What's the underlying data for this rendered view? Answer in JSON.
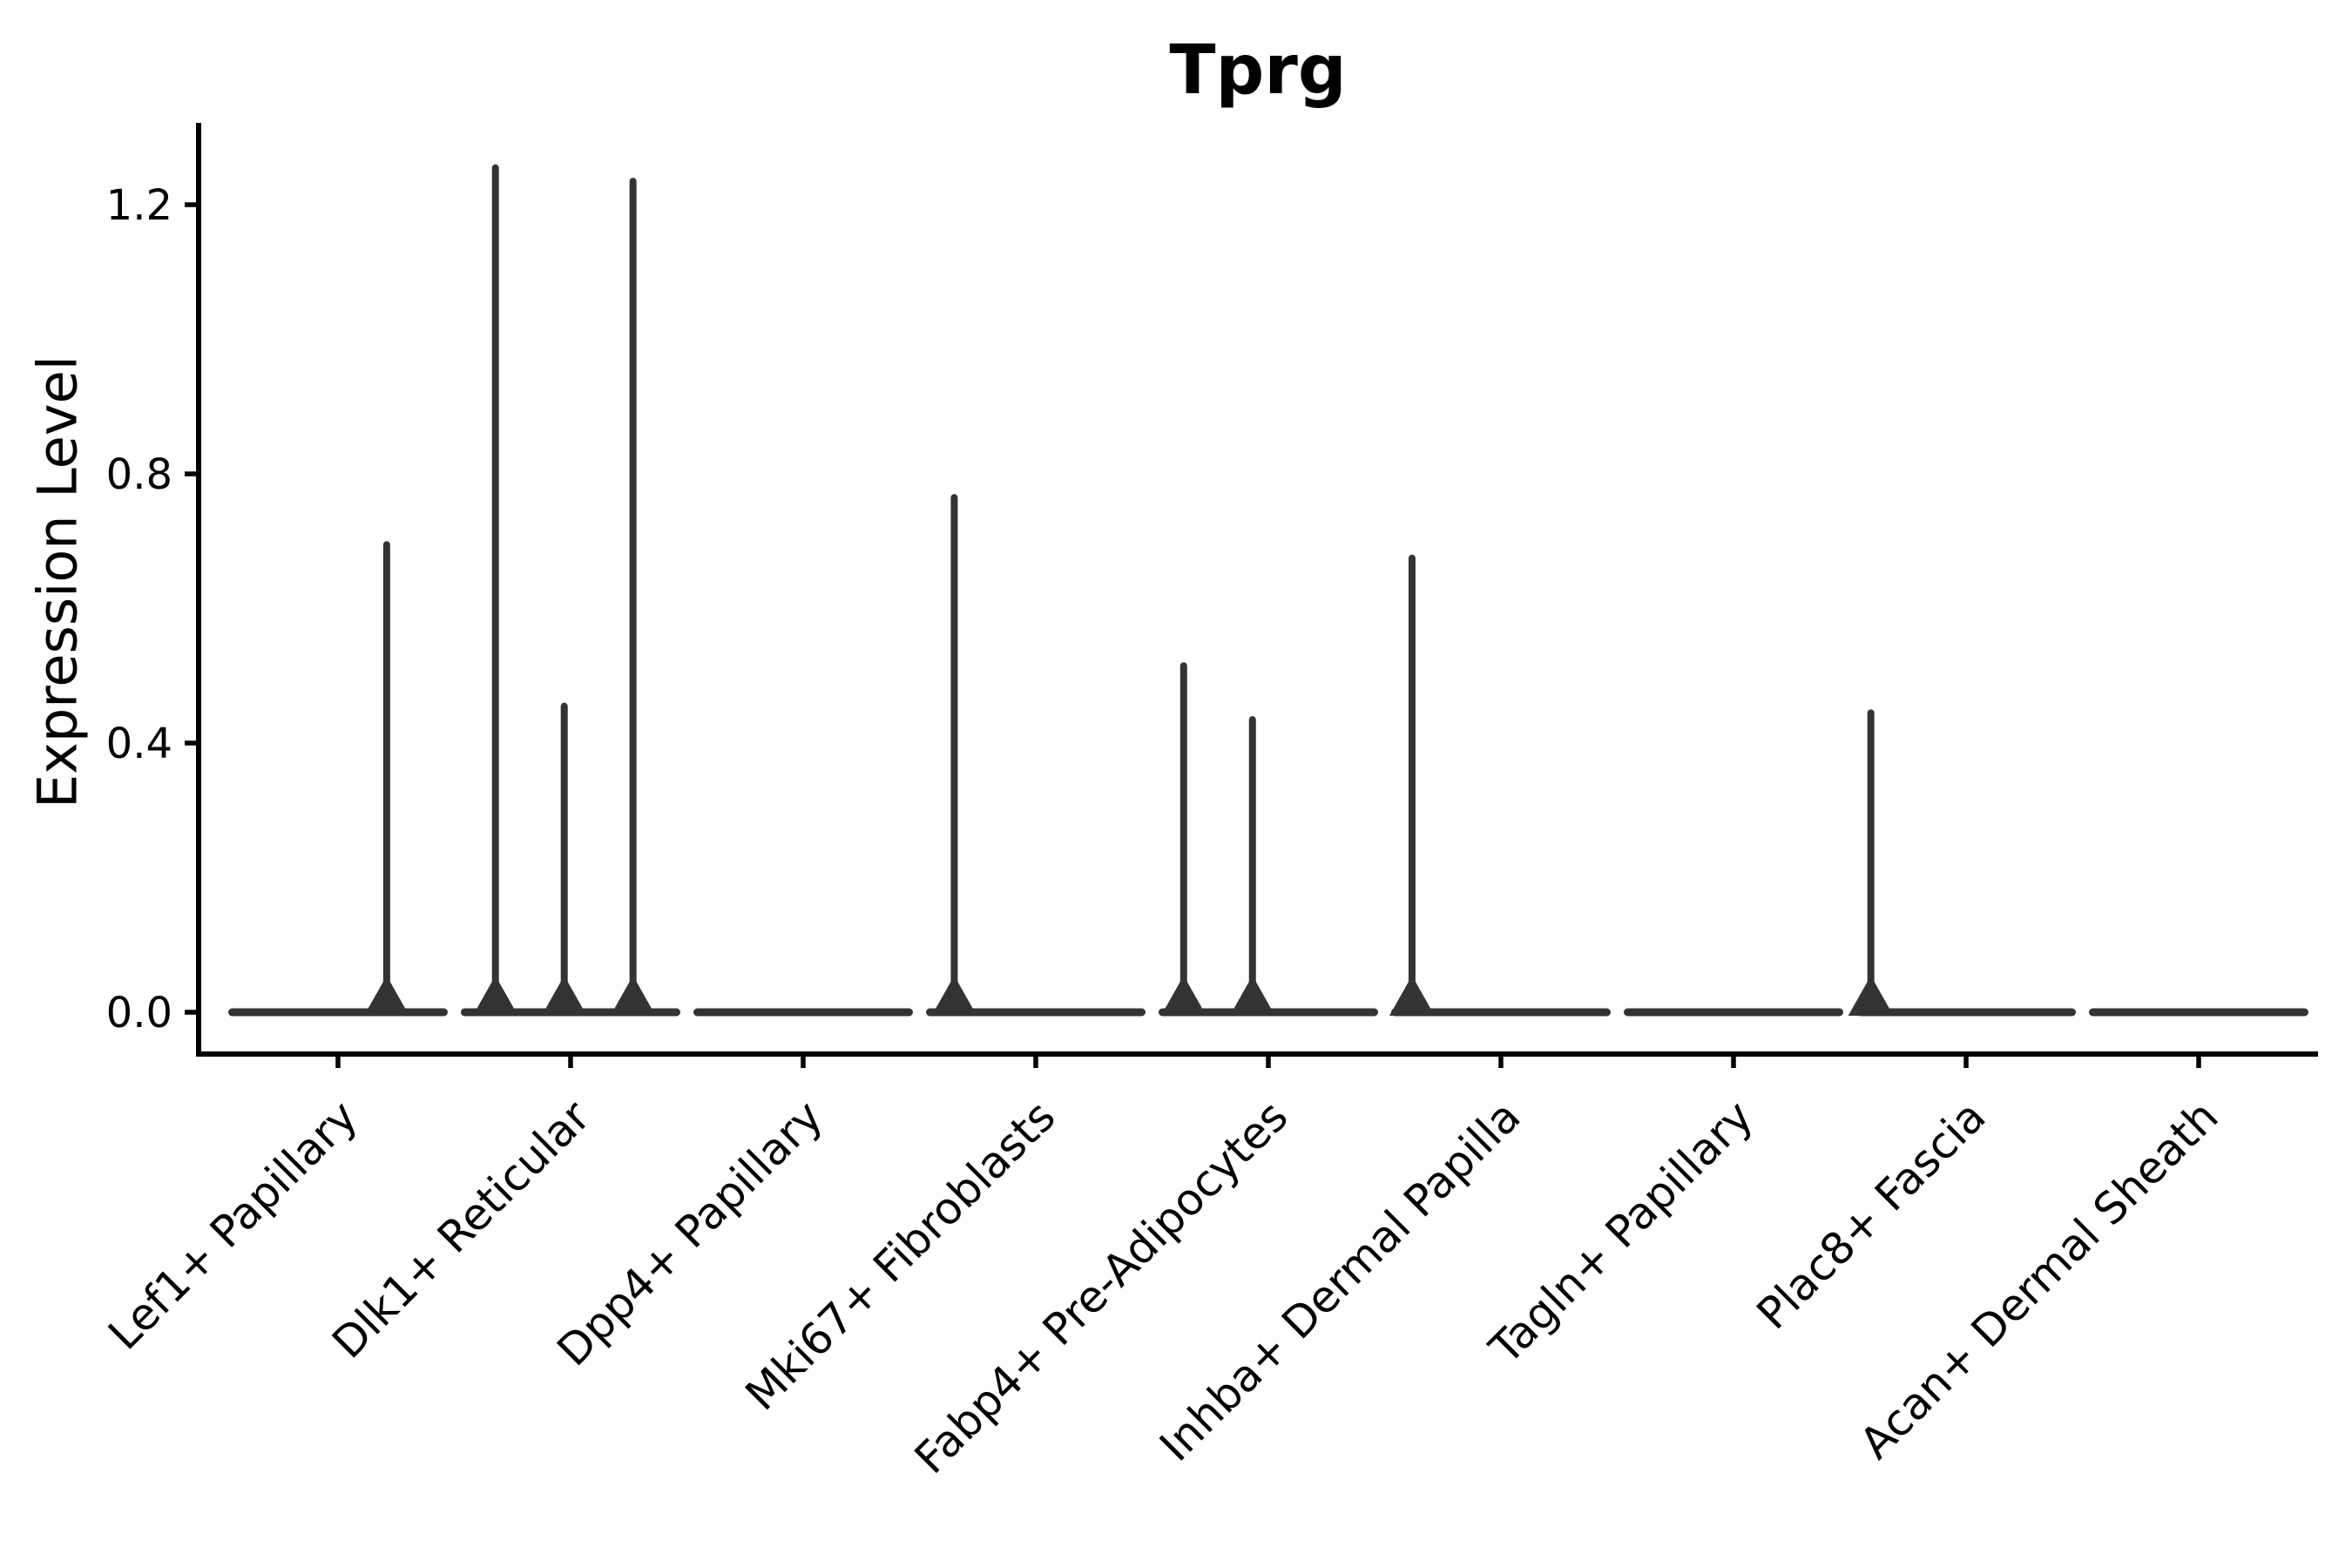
{
  "figure": {
    "background": "#ffffff"
  },
  "chart_data": {
    "type": "violin",
    "title": "Tprg",
    "ylabel": "Expression Level",
    "xlabel": "",
    "grid": false,
    "legend": "none",
    "ylim": [
      -0.06,
      1.32
    ],
    "yticks": [
      "0.0",
      "0.4",
      "0.8",
      "1.2"
    ],
    "categories": [
      "Lef1+ Papillary",
      "Dlk1+ Reticular",
      "Dpp4+ Papillary",
      "Mki67+ Fibroblasts",
      "Fabp4+ Pre-Adipocytes",
      "Inhba+ Dermal Papilla",
      "Tagln+ Papillary",
      "Plac8+ Fascia",
      "Acan+ Dermal Sheath"
    ],
    "violins": [
      {
        "category": "Lef1+ Papillary",
        "baseline_value": 0.0,
        "spikes": [
          {
            "value": 0.7,
            "offset": 0.46
          }
        ]
      },
      {
        "category": "Dlk1+ Reticular",
        "baseline_value": 0.0,
        "spikes": [
          {
            "value": 1.26,
            "offset": -0.71
          },
          {
            "value": 0.46,
            "offset": -0.06
          },
          {
            "value": 1.24,
            "offset": 0.59
          }
        ]
      },
      {
        "category": "Dpp4+ Papillary",
        "baseline_value": 0.0,
        "spikes": []
      },
      {
        "category": "Mki67+ Fibroblasts",
        "baseline_value": 0.0,
        "spikes": [
          {
            "value": 0.77,
            "offset": -0.77
          }
        ]
      },
      {
        "category": "Fabp4+ Pre-Adipocytes",
        "baseline_value": 0.0,
        "spikes": [
          {
            "value": 0.52,
            "offset": -0.8
          },
          {
            "value": 0.44,
            "offset": -0.15
          }
        ]
      },
      {
        "category": "Inhba+ Dermal Papilla",
        "baseline_value": 0.0,
        "spikes": [
          {
            "value": 0.68,
            "offset": -0.84
          }
        ]
      },
      {
        "category": "Tagln+ Papillary",
        "baseline_value": 0.0,
        "spikes": []
      },
      {
        "category": "Plac8+ Fascia",
        "baseline_value": 0.0,
        "spikes": [
          {
            "value": 0.45,
            "offset": -0.9
          }
        ]
      },
      {
        "category": "Acan+ Dermal Sheath",
        "baseline_value": 0.0,
        "spikes": []
      }
    ],
    "colors": {
      "violin": "#333333",
      "axis": "#000000",
      "text": "#000000"
    }
  }
}
